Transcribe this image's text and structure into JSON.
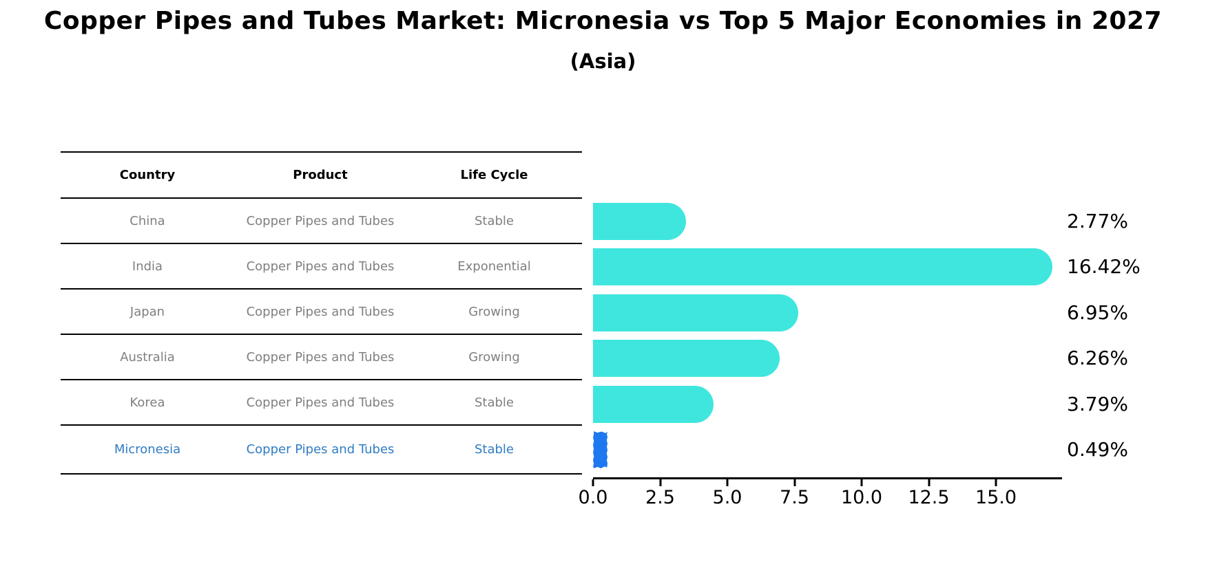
{
  "title": "Copper Pipes and Tubes Market: Micronesia vs Top 5 Major Economies in 2027",
  "subtitle": "(Asia)",
  "table": {
    "headers": [
      "Country",
      "Product",
      "Life Cycle"
    ],
    "rows": [
      {
        "country": "China",
        "product": "Copper Pipes and Tubes",
        "life_cycle": "Stable",
        "highlighted": false
      },
      {
        "country": "India",
        "product": "Copper Pipes and Tubes",
        "life_cycle": "Exponential",
        "highlighted": false
      },
      {
        "country": "Japan",
        "product": "Copper Pipes and Tubes",
        "life_cycle": "Growing",
        "highlighted": false
      },
      {
        "country": "Australia",
        "product": "Copper Pipes and Tubes",
        "life_cycle": "Growing",
        "highlighted": false
      },
      {
        "country": "Korea",
        "product": "Copper Pipes and Tubes",
        "life_cycle": "Stable",
        "highlighted": false
      },
      {
        "country": "Micronesia",
        "product": "Copper Pipes and Tubes",
        "life_cycle": "Stable",
        "highlighted": true
      }
    ]
  },
  "chart_data": {
    "type": "bar",
    "orientation": "horizontal",
    "title": "Copper Pipes and Tubes Market: Micronesia vs Top 5 Major Economies in 2027 (Asia)",
    "categories": [
      "China",
      "India",
      "Japan",
      "Australia",
      "Korea",
      "Micronesia"
    ],
    "values": [
      2.77,
      16.42,
      6.95,
      6.26,
      3.79,
      0.49
    ],
    "value_labels": [
      "2.77%",
      "16.42%",
      "6.95%",
      "6.26%",
      "3.79%",
      "0.49%"
    ],
    "x_ticks": [
      "0.0",
      "2.5",
      "5.0",
      "7.5",
      "10.0",
      "12.5",
      "15.0"
    ],
    "x_tick_values": [
      0,
      2.5,
      5,
      7.5,
      10,
      12.5,
      15
    ],
    "xlim": [
      0,
      17.4
    ],
    "grid": false,
    "legend": false,
    "bar_color": "#3fe6de",
    "highlight_color": "#1e78f0",
    "highlight_text_color": "#2f7cc4",
    "highlight_index": 5
  }
}
